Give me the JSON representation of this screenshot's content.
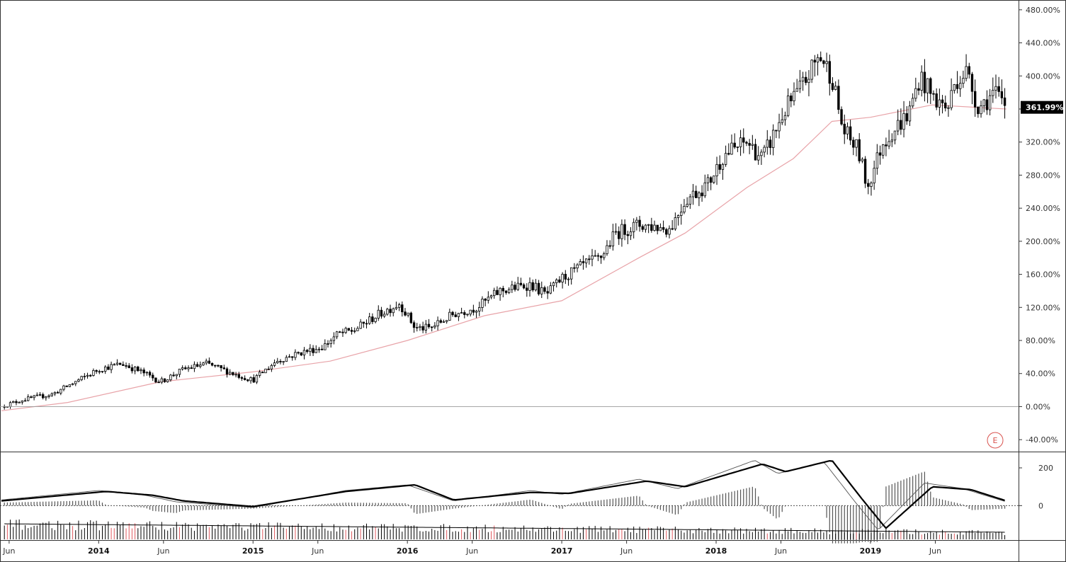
{
  "chart_data": [
    {
      "type": "candlestick",
      "panel": "price",
      "y_unit": "%",
      "ylim": [
        -45,
        485
      ],
      "y_ticks": [
        {
          "value": 480,
          "label": "480.00%"
        },
        {
          "value": 440,
          "label": "440.00%"
        },
        {
          "value": 400,
          "label": "400.00%"
        },
        {
          "value": 360,
          "label": "360.00%"
        },
        {
          "value": 320,
          "label": "320.00%"
        },
        {
          "value": 280,
          "label": "280.00%"
        },
        {
          "value": 240,
          "label": "240.00%"
        },
        {
          "value": 200,
          "label": "200.00%"
        },
        {
          "value": 160,
          "label": "160.00%"
        },
        {
          "value": 120,
          "label": "120.00%"
        },
        {
          "value": 80,
          "label": "80.00%"
        },
        {
          "value": 40,
          "label": "40.00%"
        },
        {
          "value": 0,
          "label": "0.00%"
        },
        {
          "value": -40,
          "label": "-40.00%"
        }
      ],
      "last_value_label": "361.99%",
      "last_value": 361.99,
      "zero_line": 0,
      "price_path": [
        [
          2013.37,
          0
        ],
        [
          2013.5,
          8
        ],
        [
          2013.7,
          15
        ],
        [
          2013.9,
          35
        ],
        [
          2014.0,
          45
        ],
        [
          2014.15,
          52
        ],
        [
          2014.3,
          40
        ],
        [
          2014.4,
          30
        ],
        [
          2014.55,
          45
        ],
        [
          2014.7,
          52
        ],
        [
          2014.8,
          45
        ],
        [
          2014.9,
          38
        ],
        [
          2015.0,
          32
        ],
        [
          2015.15,
          55
        ],
        [
          2015.3,
          65
        ],
        [
          2015.45,
          72
        ],
        [
          2015.55,
          88
        ],
        [
          2015.65,
          92
        ],
        [
          2015.8,
          110
        ],
        [
          2015.95,
          125
        ],
        [
          2016.05,
          95
        ],
        [
          2016.15,
          95
        ],
        [
          2016.3,
          112
        ],
        [
          2016.45,
          120
        ],
        [
          2016.6,
          140
        ],
        [
          2016.8,
          148
        ],
        [
          2016.9,
          135
        ],
        [
          2017.0,
          155
        ],
        [
          2017.15,
          172
        ],
        [
          2017.25,
          180
        ],
        [
          2017.35,
          210
        ],
        [
          2017.5,
          220
        ],
        [
          2017.6,
          218
        ],
        [
          2017.7,
          215
        ],
        [
          2017.8,
          250
        ],
        [
          2017.95,
          270
        ],
        [
          2018.05,
          305
        ],
        [
          2018.2,
          320
        ],
        [
          2018.3,
          300
        ],
        [
          2018.45,
          360
        ],
        [
          2018.55,
          385
        ],
        [
          2018.67,
          425
        ],
        [
          2018.75,
          400
        ],
        [
          2018.82,
          335
        ],
        [
          2018.92,
          310
        ],
        [
          2018.98,
          265
        ],
        [
          2019.08,
          320
        ],
        [
          2019.25,
          355
        ],
        [
          2019.32,
          400
        ],
        [
          2019.4,
          375
        ],
        [
          2019.5,
          360
        ],
        [
          2019.55,
          395
        ],
        [
          2019.62,
          405
        ],
        [
          2019.7,
          362
        ],
        [
          2019.8,
          380
        ],
        [
          2019.88,
          362
        ]
      ],
      "moving_average": [
        [
          2013.37,
          -5
        ],
        [
          2013.8,
          5
        ],
        [
          2014.4,
          30
        ],
        [
          2015.0,
          42
        ],
        [
          2015.5,
          55
        ],
        [
          2016.0,
          80
        ],
        [
          2016.5,
          110
        ],
        [
          2017.0,
          128
        ],
        [
          2017.5,
          180
        ],
        [
          2017.8,
          210
        ],
        [
          2018.2,
          265
        ],
        [
          2018.5,
          300
        ],
        [
          2018.75,
          345
        ],
        [
          2019.0,
          350
        ],
        [
          2019.4,
          365
        ],
        [
          2019.88,
          360
        ]
      ],
      "colors": {
        "up": "#ffffff",
        "down": "#000000",
        "wick": "#000000",
        "moving_average": "#e8a3a8"
      }
    },
    {
      "type": "line",
      "panel": "macd",
      "ylim": [
        -160,
        260
      ],
      "y_ticks": [
        {
          "value": 200,
          "label": "200"
        },
        {
          "value": 0,
          "label": "0"
        }
      ],
      "series": [
        {
          "values": [
            [
              2013.37,
              30
            ],
            [
              2014.0,
              80
            ],
            [
              2014.3,
              55
            ],
            [
              2014.5,
              20
            ],
            [
              2015.0,
              -10
            ],
            [
              2015.6,
              80
            ],
            [
              2016.0,
              110
            ],
            [
              2016.3,
              25
            ],
            [
              2016.8,
              80
            ],
            [
              2017.0,
              60
            ],
            [
              2017.5,
              140
            ],
            [
              2017.75,
              90
            ],
            [
              2018.25,
              240
            ],
            [
              2018.4,
              170
            ],
            [
              2018.7,
              230
            ],
            [
              2018.9,
              20
            ],
            [
              2019.05,
              -130
            ],
            [
              2019.35,
              120
            ],
            [
              2019.6,
              90
            ],
            [
              2019.88,
              20
            ]
          ]
        },
        {
          "values": [
            [
              2013.37,
              25
            ],
            [
              2014.05,
              75
            ],
            [
              2014.35,
              55
            ],
            [
              2014.55,
              25
            ],
            [
              2015.0,
              -5
            ],
            [
              2015.6,
              75
            ],
            [
              2016.05,
              110
            ],
            [
              2016.3,
              30
            ],
            [
              2016.8,
              70
            ],
            [
              2017.05,
              65
            ],
            [
              2017.55,
              130
            ],
            [
              2017.8,
              100
            ],
            [
              2018.3,
              220
            ],
            [
              2018.45,
              180
            ],
            [
              2018.75,
              240
            ],
            [
              2018.95,
              30
            ],
            [
              2019.1,
              -120
            ],
            [
              2019.4,
              100
            ],
            [
              2019.65,
              85
            ],
            [
              2019.88,
              25
            ]
          ]
        }
      ],
      "histogram_color": "#555555",
      "dotted_zero_line": true
    },
    {
      "type": "bar",
      "panel": "volume",
      "description_free": true,
      "colors": {
        "default": "#000000",
        "accent": "#e0595e"
      },
      "moving_average_line": true
    }
  ],
  "x_axis": {
    "range": [
      2013.37,
      2019.95
    ],
    "ticks": [
      {
        "value": 2013.42,
        "label": "Jun",
        "bold": false
      },
      {
        "value": 2014.0,
        "label": "2014",
        "bold": true
      },
      {
        "value": 2014.42,
        "label": "Jun",
        "bold": false
      },
      {
        "value": 2015.0,
        "label": "2015",
        "bold": true
      },
      {
        "value": 2015.42,
        "label": "Jun",
        "bold": false
      },
      {
        "value": 2016.0,
        "label": "2016",
        "bold": true
      },
      {
        "value": 2016.42,
        "label": "Jun",
        "bold": false
      },
      {
        "value": 2017.0,
        "label": "2017",
        "bold": true
      },
      {
        "value": 2017.42,
        "label": "Jun",
        "bold": false
      },
      {
        "value": 2018.0,
        "label": "2018",
        "bold": true
      },
      {
        "value": 2018.42,
        "label": "Jun",
        "bold": false
      },
      {
        "value": 2019.0,
        "label": "2019",
        "bold": true
      },
      {
        "value": 2019.42,
        "label": "Jun",
        "bold": false
      }
    ]
  },
  "earnings_marker": {
    "label": "E",
    "color": "#d9534f"
  }
}
